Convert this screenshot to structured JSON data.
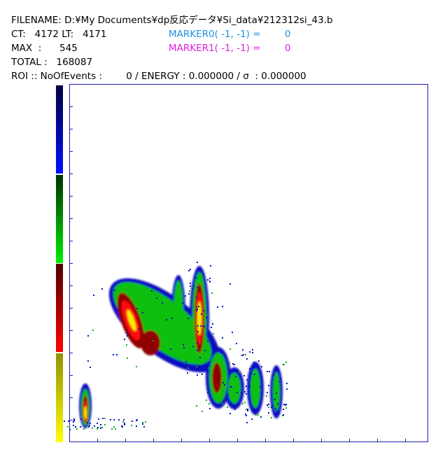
{
  "header": {
    "filename": "FILENAME: D:¥My Documents¥dp反応データ¥Si_data¥212312si_43.b",
    "ct_lt": "CT:   4172 LT:   4171",
    "max": "MAX  :      545",
    "total": "TOTAL :   168087",
    "marker0": "MARKER0( -1, -1) =        0",
    "marker1": "MARKER1( -1, -1) =        0",
    "roi": "ROI :: NoOfEvents :        0 / ENERGY : 0.000000 / σ  : 0.000000"
  }
}
